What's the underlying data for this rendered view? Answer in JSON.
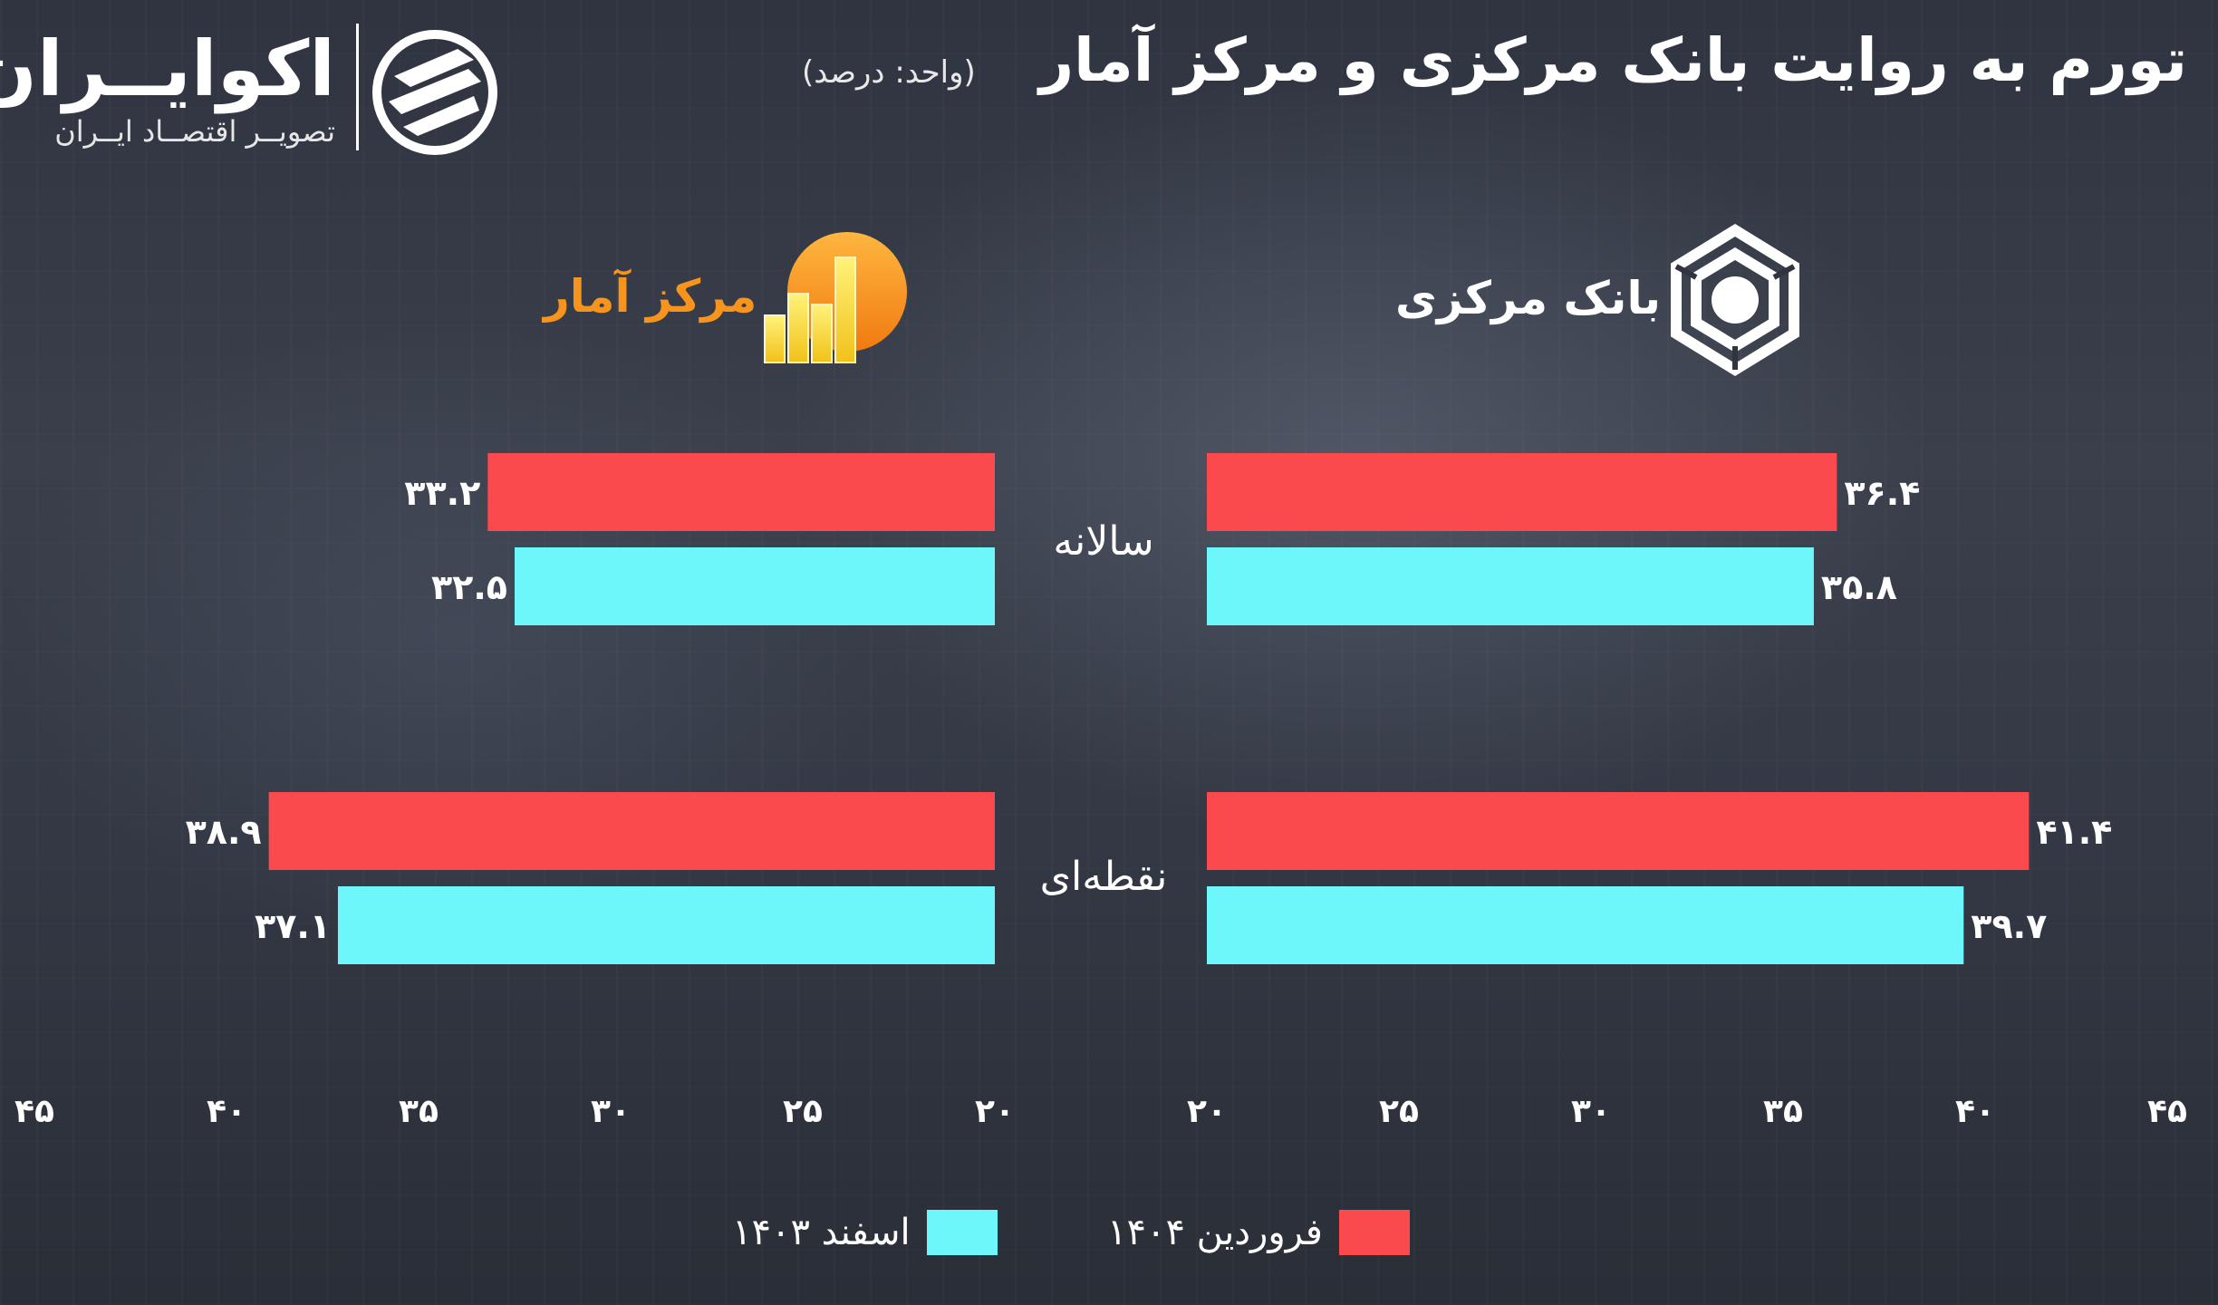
{
  "header": {
    "title": "تورم به روایت بانک مرکزی و مرکز آمار",
    "unit": "(واحد: درصد)"
  },
  "brand": {
    "name": "اکوایــران",
    "tagline": "تصویــر اقتصــاد ایــران"
  },
  "colors": {
    "farvardin": "#fb4a4e",
    "esfand": "#6ef7fb",
    "amar_label": "#f7941d"
  },
  "chart_data": {
    "type": "bar",
    "orientation": "horizontal",
    "categories": [
      "سالانه",
      "نقطه‌ای"
    ],
    "panels": [
      {
        "name": "بانک مرکزی",
        "series": [
          {
            "name": "فروردین ۱۴۰۴",
            "values": [
              36.4,
              41.4
            ],
            "labels": [
              "۳۶.۴",
              "۴۱.۴"
            ]
          },
          {
            "name": "اسفند ۱۴۰۳",
            "values": [
              35.8,
              39.7
            ],
            "labels": [
              "۳۵.۸",
              "۳۹.۷"
            ]
          }
        ]
      },
      {
        "name": "مرکز آمار",
        "series": [
          {
            "name": "فروردین ۱۴۰۴",
            "values": [
              33.2,
              38.9
            ],
            "labels": [
              "۳۳.۲",
              "۳۸.۹"
            ]
          },
          {
            "name": "اسفند ۱۴۰۳",
            "values": [
              32.5,
              37.1
            ],
            "labels": [
              "۳۲.۵",
              "۳۷.۱"
            ]
          }
        ]
      }
    ],
    "xlim": [
      20,
      45
    ],
    "ticks": [
      20,
      25,
      30,
      35,
      40,
      45
    ],
    "tick_labels": [
      "۲۰",
      "۲۵",
      "۳۰",
      "۳۵",
      "۴۰",
      "۴۵"
    ],
    "legend": {
      "placement": "bottom-center",
      "entries": [
        {
          "name": "فروردین ۱۴۰۴",
          "color": "#fb4a4e"
        },
        {
          "name": "اسفند ۱۴۰۳",
          "color": "#6ef7fb"
        }
      ]
    },
    "grid": false
  }
}
